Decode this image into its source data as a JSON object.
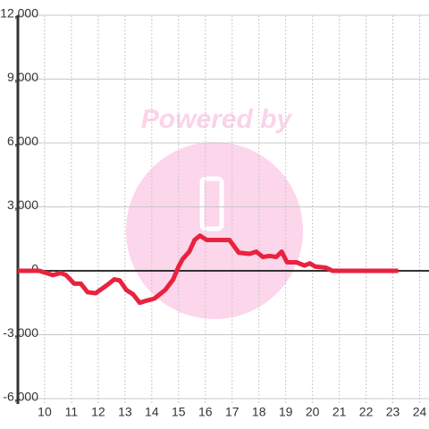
{
  "chart_data": {
    "type": "line",
    "watermark": "Powered by",
    "x": [
      9.0,
      9.8,
      10.3,
      10.6,
      10.8,
      11.1,
      11.35,
      11.6,
      11.9,
      12.3,
      12.6,
      12.8,
      13.05,
      13.3,
      13.55,
      13.8,
      14.1,
      14.5,
      14.8,
      15.0,
      15.15,
      15.4,
      15.6,
      15.8,
      16.05,
      16.5,
      16.9,
      17.25,
      17.65,
      17.9,
      18.15,
      18.4,
      18.65,
      18.85,
      19.05,
      19.4,
      19.7,
      19.9,
      20.1,
      20.5,
      20.75,
      23.2
    ],
    "series": [
      {
        "color": "#e8233f",
        "values": [
          0,
          0,
          -200,
          -100,
          -200,
          -600,
          -600,
          -1000,
          -1050,
          -700,
          -400,
          -450,
          -900,
          -1100,
          -1500,
          -1400,
          -1300,
          -900,
          -400,
          200,
          550,
          900,
          1450,
          1650,
          1450,
          1450,
          1450,
          850,
          800,
          900,
          650,
          700,
          650,
          900,
          400,
          400,
          250,
          350,
          200,
          150,
          0,
          0
        ]
      }
    ],
    "xlim": [
      9,
      24.35
    ],
    "xticks": [
      10,
      11,
      12,
      13,
      14,
      15,
      16,
      17,
      18,
      19,
      20,
      21,
      22,
      23,
      24
    ],
    "ylim": [
      -6250,
      12000
    ],
    "yticks": [
      {
        "value": -6000,
        "label": "-6,000"
      },
      {
        "value": -3000,
        "label": "-3,000"
      },
      0,
      {
        "value": 3000,
        "label": "3,000"
      },
      {
        "value": 6000,
        "label": "6,000"
      },
      {
        "value": 9000,
        "label": "9,000"
      },
      {
        "value": 12000,
        "label": "12,000"
      }
    ],
    "grid": true
  }
}
